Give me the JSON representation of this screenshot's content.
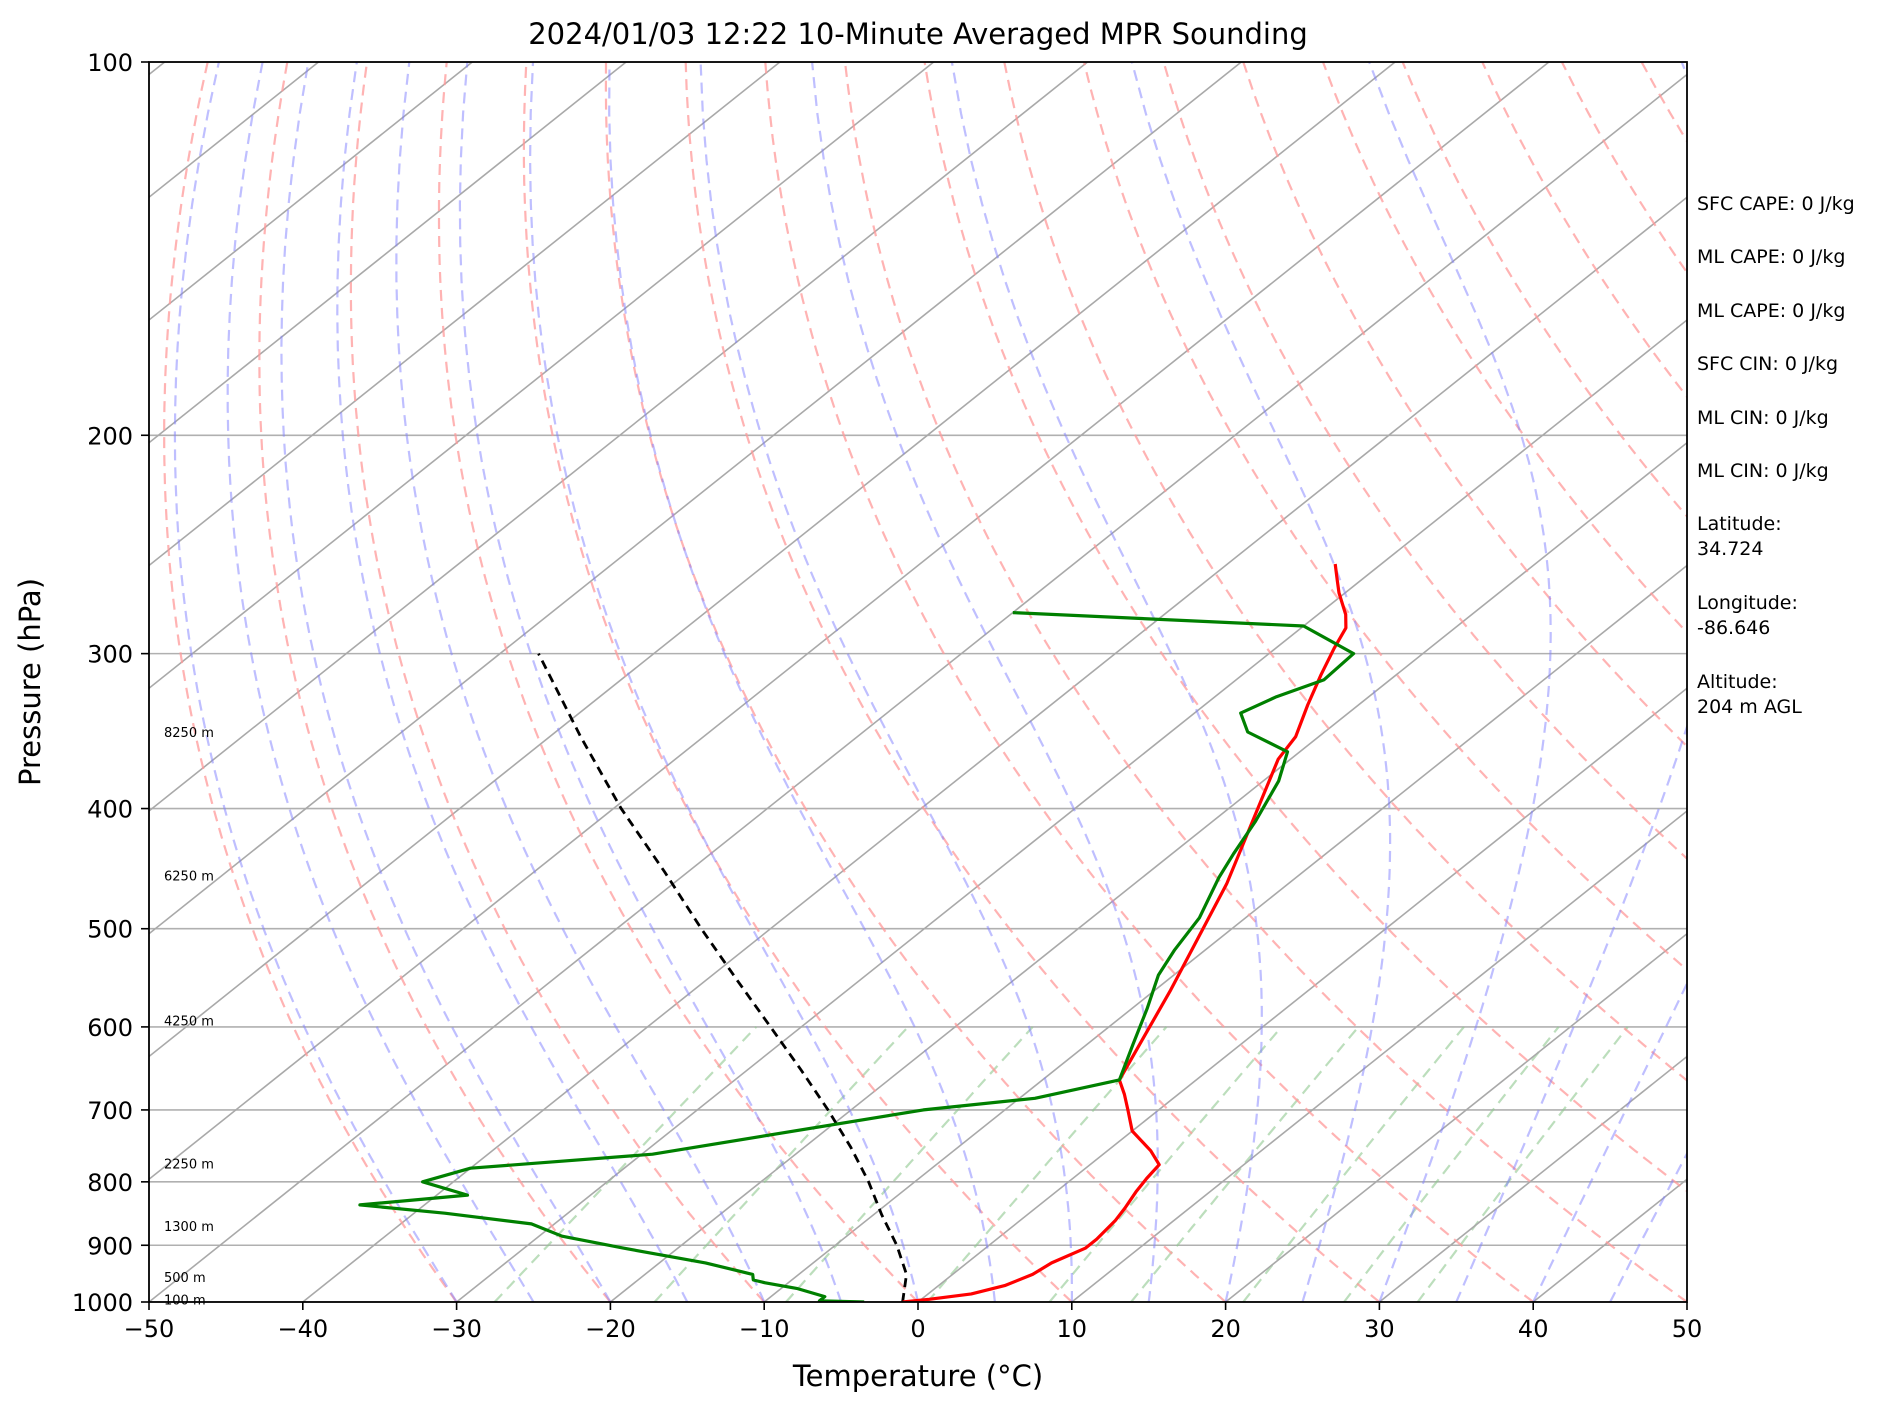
{
  "chart_data": {
    "type": "line",
    "subtype": "skew-t log-p sounding",
    "title": "2024/01/03 12:22 10-Minute Averaged MPR Sounding",
    "xlabel": "Temperature (°C)",
    "ylabel": "Pressure (hPa)",
    "xlim": [
      -50,
      50
    ],
    "ylim": [
      1000,
      100
    ],
    "y_scale": "log",
    "grid": true,
    "x_ticks": [
      "−50",
      "−40",
      "−30",
      "−20",
      "−10",
      "0",
      "10",
      "20",
      "30",
      "40",
      "50"
    ],
    "y_ticks": [
      "100",
      "200",
      "300",
      "400",
      "500",
      "600",
      "700",
      "800",
      "900",
      "1000"
    ],
    "height_labels": [
      {
        "text": "100 m",
        "p": 995
      },
      {
        "text": "500 m",
        "p": 955
      },
      {
        "text": "1300 m",
        "p": 868
      },
      {
        "text": "2250 m",
        "p": 773
      },
      {
        "text": "4250 m",
        "p": 593
      },
      {
        "text": "6250 m",
        "p": 453
      },
      {
        "text": "8250 m",
        "p": 347
      }
    ],
    "series": [
      {
        "color": "#ff0000",
        "points": [
          {
            "p": 1000,
            "t": -1.0
          },
          {
            "p": 995,
            "t": 0.5
          },
          {
            "p": 985,
            "t": 2.8
          },
          {
            "p": 970,
            "t": 4.3
          },
          {
            "p": 950,
            "t": 5.2
          },
          {
            "p": 930,
            "t": 5.5
          },
          {
            "p": 905,
            "t": 6.5
          },
          {
            "p": 890,
            "t": 6.5
          },
          {
            "p": 860,
            "t": 6.2
          },
          {
            "p": 840,
            "t": 5.8
          },
          {
            "p": 815,
            "t": 5.2
          },
          {
            "p": 795,
            "t": 4.8
          },
          {
            "p": 775,
            "t": 4.5
          },
          {
            "p": 755,
            "t": 2.8
          },
          {
            "p": 728,
            "t": 0.0
          },
          {
            "p": 700,
            "t": -2.0
          },
          {
            "p": 680,
            "t": -3.5
          },
          {
            "p": 662,
            "t": -5.0
          },
          {
            "p": 560,
            "t": -9.0
          },
          {
            "p": 460,
            "t": -14.0
          },
          {
            "p": 365,
            "t": -20.8
          },
          {
            "p": 350,
            "t": -21.5
          },
          {
            "p": 330,
            "t": -23.3
          },
          {
            "p": 312,
            "t": -24.9
          },
          {
            "p": 297,
            "t": -26.2
          },
          {
            "p": 286,
            "t": -27.1
          },
          {
            "p": 279,
            "t": -28.2
          },
          {
            "p": 268,
            "t": -30.4
          },
          {
            "p": 262,
            "t": -31.5
          },
          {
            "p": 254,
            "t": -33.0
          }
        ]
      },
      {
        "color": "#008000",
        "points": [
          {
            "p": 1000,
            "t": -3.5
          },
          {
            "p": 998,
            "t": -6.5
          },
          {
            "p": 990,
            "t": -6.5
          },
          {
            "p": 975,
            "t": -9.0
          },
          {
            "p": 965,
            "t": -11.5
          },
          {
            "p": 960,
            "t": -12.5
          },
          {
            "p": 950,
            "t": -13.0
          },
          {
            "p": 930,
            "t": -17.0
          },
          {
            "p": 905,
            "t": -23.5
          },
          {
            "p": 885,
            "t": -28.5
          },
          {
            "p": 865,
            "t": -31.5
          },
          {
            "p": 848,
            "t": -38.0
          },
          {
            "p": 835,
            "t": -44.2
          },
          {
            "p": 820,
            "t": -38.0
          },
          {
            "p": 800,
            "t": -42.0
          },
          {
            "p": 780,
            "t": -40.0
          },
          {
            "p": 760,
            "t": -29.3
          },
          {
            "p": 700,
            "t": -15.3
          },
          {
            "p": 685,
            "t": -9.0
          },
          {
            "p": 662,
            "t": -5.0
          },
          {
            "p": 620,
            "t": -7.0
          },
          {
            "p": 580,
            "t": -9.0
          },
          {
            "p": 545,
            "t": -11.0
          },
          {
            "p": 520,
            "t": -12.0
          },
          {
            "p": 490,
            "t": -13.0
          },
          {
            "p": 455,
            "t": -15.0
          },
          {
            "p": 435,
            "t": -16.0
          },
          {
            "p": 410,
            "t": -17.2
          },
          {
            "p": 380,
            "t": -19.0
          },
          {
            "p": 360,
            "t": -20.8
          },
          {
            "p": 347,
            "t": -25.0
          },
          {
            "p": 335,
            "t": -27.0
          },
          {
            "p": 325,
            "t": -26.0
          },
          {
            "p": 315,
            "t": -24.3
          },
          {
            "p": 300,
            "t": -24.5
          },
          {
            "p": 285,
            "t": -30.0
          },
          {
            "p": 278,
            "t": -50.0
          }
        ]
      }
    ],
    "parcel_profile": {
      "color": "#000000",
      "points": [
        {
          "p": 1000,
          "t": -1.0
        },
        {
          "p": 950,
          "t": -3.0
        },
        {
          "p": 900,
          "t": -6.0
        },
        {
          "p": 850,
          "t": -9.5
        },
        {
          "p": 800,
          "t": -13.0
        },
        {
          "p": 750,
          "t": -17.0
        },
        {
          "p": 700,
          "t": -21.5
        },
        {
          "p": 650,
          "t": -26.5
        },
        {
          "p": 600,
          "t": -32.0
        },
        {
          "p": 550,
          "t": -38.0
        },
        {
          "p": 500,
          "t": -44.5
        },
        {
          "p": 450,
          "t": -51.5
        },
        {
          "p": 400,
          "t": -59.5
        },
        {
          "p": 350,
          "t": -68.0
        },
        {
          "p": 300,
          "t": -77.5
        }
      ]
    },
    "reference_lines": {
      "isotherms_color": "#a9a9a9",
      "dry_adiabats_color": "#ff9999",
      "moist_adiabats_color": "#8080ff",
      "mixing_ratio_color": "#90c890"
    }
  },
  "info_panel": [
    "SFC CAPE: 0 J/kg",
    "ML CAPE: 0 J/kg",
    "ML CAPE: 0 J/kg",
    "SFC CIN: 0 J/kg",
    "ML CIN: 0 J/kg",
    "ML CIN: 0 J/kg",
    "Latitude:",
    "34.724",
    "Longitude:",
    "-86.646",
    "Altitude:",
    "204 m AGL"
  ]
}
